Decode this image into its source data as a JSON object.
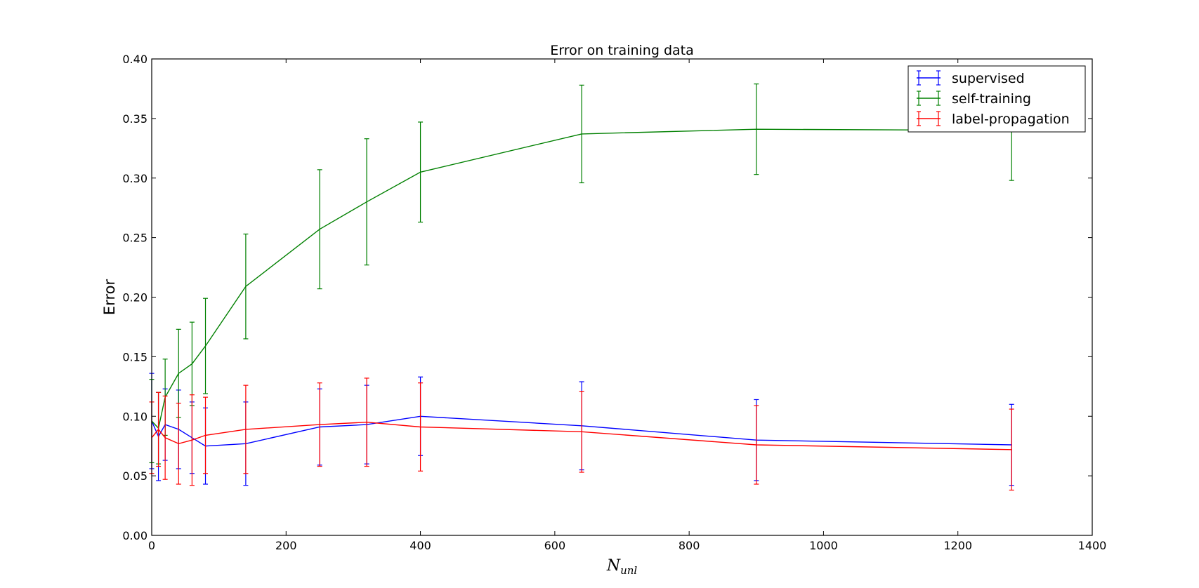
{
  "chart_data": {
    "type": "line",
    "title": "Error on training data",
    "xlabel_base": "N",
    "xlabel_sub": "unl",
    "ylabel": "Error",
    "xlim": [
      0,
      1400
    ],
    "ylim": [
      0.0,
      0.4
    ],
    "x_ticks": [
      0,
      200,
      400,
      600,
      800,
      1000,
      1200,
      1400
    ],
    "x_tick_labels": [
      "0",
      "200",
      "400",
      "600",
      "800",
      "1000",
      "1200",
      "1400"
    ],
    "y_ticks": [
      0.0,
      0.05,
      0.1,
      0.15,
      0.2,
      0.25,
      0.3,
      0.35,
      0.4
    ],
    "y_tick_labels": [
      "0.00",
      "0.05",
      "0.10",
      "0.15",
      "0.20",
      "0.25",
      "0.30",
      "0.35",
      "0.40"
    ],
    "grid": false,
    "legend_position": "top-right",
    "x": [
      0,
      10,
      20,
      40,
      60,
      80,
      140,
      250,
      320,
      400,
      640,
      900,
      1280
    ],
    "series": [
      {
        "name": "supervised",
        "color": "#0000ff",
        "values": [
          0.096,
          0.083,
          0.093,
          0.089,
          0.082,
          0.075,
          0.077,
          0.091,
          0.093,
          0.1,
          0.092,
          0.08,
          0.076
        ],
        "errors": [
          0.04,
          0.037,
          0.03,
          0.033,
          0.03,
          0.032,
          0.035,
          0.032,
          0.033,
          0.033,
          0.037,
          0.034,
          0.034
        ]
      },
      {
        "name": "self-training",
        "color": "#008000",
        "values": [
          0.096,
          0.09,
          0.116,
          0.136,
          0.144,
          0.159,
          0.209,
          0.257,
          0.28,
          0.305,
          0.337,
          0.341,
          0.34
        ],
        "errors": [
          0.035,
          0.03,
          0.032,
          0.037,
          0.035,
          0.04,
          0.044,
          0.05,
          0.053,
          0.042,
          0.041,
          0.038,
          0.042
        ]
      },
      {
        "name": "label-propagation",
        "color": "#ff0000",
        "values": [
          0.082,
          0.089,
          0.082,
          0.077,
          0.08,
          0.084,
          0.089,
          0.093,
          0.095,
          0.091,
          0.087,
          0.076,
          0.072
        ],
        "errors": [
          0.03,
          0.031,
          0.035,
          0.034,
          0.038,
          0.032,
          0.037,
          0.035,
          0.037,
          0.037,
          0.034,
          0.033,
          0.034
        ]
      }
    ]
  }
}
